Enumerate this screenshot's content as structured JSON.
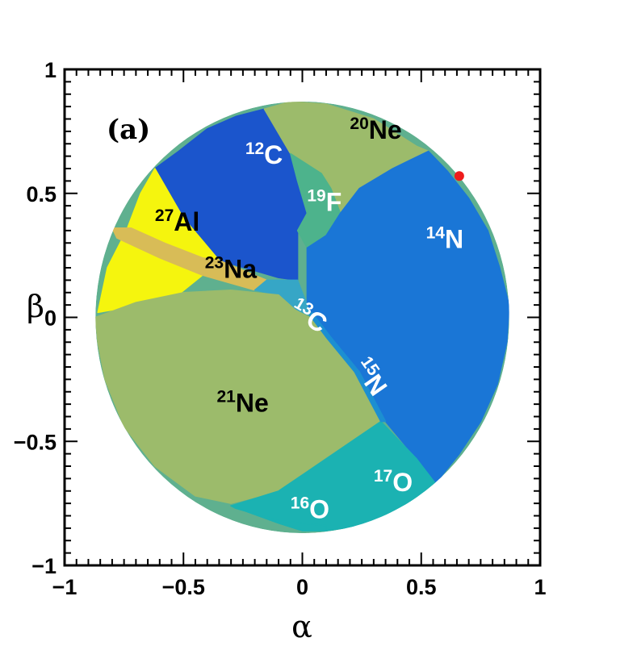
{
  "chart_data": {
    "type": "region-map",
    "panel_label": "(a)",
    "xlabel": "α",
    "ylabel": "β",
    "xlim": [
      -1,
      1
    ],
    "ylim": [
      -1,
      1
    ],
    "xticks": [
      {
        "value": -1,
        "label": "−1"
      },
      {
        "value": -0.5,
        "label": "−0.5"
      },
      {
        "value": 0,
        "label": "0"
      },
      {
        "value": 0.5,
        "label": "0.5"
      },
      {
        "value": 1,
        "label": "1"
      }
    ],
    "yticks": [
      {
        "value": -1,
        "label": "−1"
      },
      {
        "value": -0.5,
        "label": "−0.5"
      },
      {
        "value": 0,
        "label": "0"
      },
      {
        "value": 0.5,
        "label": "0.5"
      },
      {
        "value": 1,
        "label": "1"
      }
    ],
    "circle_radius": 0.87,
    "regions": [
      {
        "mass": "12",
        "element": "C",
        "color": "#1b55cc",
        "label_at": [
          -0.24,
          0.62
        ],
        "label_color": "#ffffff",
        "polygon": [
          [
            -0.62,
            0.6
          ],
          [
            -0.52,
            0.67
          ],
          [
            -0.4,
            0.76
          ],
          [
            -0.28,
            0.81
          ],
          [
            -0.16,
            0.84
          ],
          [
            -0.05,
            0.66
          ],
          [
            -0.02,
            0.55
          ],
          [
            0.02,
            0.42
          ],
          [
            -0.02,
            0.35
          ],
          [
            -0.02,
            0.15
          ],
          [
            -0.1,
            0.16
          ],
          [
            -0.35,
            0.23
          ],
          [
            -0.5,
            0.4
          ]
        ]
      },
      {
        "mass": "20",
        "element": "Ne",
        "color": "#9cbb6b",
        "label_at": [
          0.2,
          0.72
        ],
        "label_color": "#000000",
        "polygon": [
          [
            -0.16,
            0.84
          ],
          [
            -0.05,
            0.87
          ],
          [
            0.1,
            0.86
          ],
          [
            0.3,
            0.8
          ],
          [
            0.48,
            0.69
          ],
          [
            0.53,
            0.67
          ],
          [
            0.38,
            0.6
          ],
          [
            0.24,
            0.52
          ],
          [
            0.16,
            0.42
          ],
          [
            0.12,
            0.52
          ],
          [
            0.08,
            0.58
          ],
          [
            -0.05,
            0.66
          ]
        ]
      },
      {
        "mass": "19",
        "element": "F",
        "color": "#4db38c",
        "label_at": [
          0.02,
          0.43
        ],
        "label_color": "#ffffff",
        "polygon": [
          [
            -0.05,
            0.66
          ],
          [
            0.08,
            0.58
          ],
          [
            0.12,
            0.52
          ],
          [
            0.16,
            0.42
          ],
          [
            0.1,
            0.33
          ],
          [
            0.02,
            0.28
          ],
          [
            -0.02,
            0.35
          ],
          [
            0.02,
            0.42
          ],
          [
            -0.02,
            0.55
          ]
        ]
      },
      {
        "mass": "14",
        "element": "N",
        "color": "#1a76d6",
        "label_at": [
          0.52,
          0.28
        ],
        "label_color": "#ffffff",
        "polygon": [
          [
            0.53,
            0.67
          ],
          [
            0.61,
            0.59
          ],
          [
            0.7,
            0.48
          ],
          [
            0.78,
            0.35
          ],
          [
            0.83,
            0.2
          ],
          [
            0.87,
            0.05
          ],
          [
            0.86,
            -0.1
          ],
          [
            0.82,
            -0.27
          ],
          [
            0.75,
            -0.42
          ],
          [
            0.66,
            -0.55
          ],
          [
            0.56,
            -0.67
          ],
          [
            0.48,
            -0.57
          ],
          [
            0.35,
            -0.42
          ],
          [
            0.22,
            -0.22
          ],
          [
            0.1,
            -0.08
          ],
          [
            0.02,
            0.05
          ],
          [
            0.02,
            0.28
          ],
          [
            0.1,
            0.33
          ],
          [
            0.16,
            0.42
          ],
          [
            0.24,
            0.52
          ],
          [
            0.38,
            0.6
          ]
        ]
      },
      {
        "mass": "27",
        "element": "Al",
        "color": "#f5f50e",
        "label_at": [
          -0.62,
          0.35
        ],
        "label_color": "#000000",
        "polygon": [
          [
            -0.62,
            0.6
          ],
          [
            -0.5,
            0.4
          ],
          [
            -0.35,
            0.23
          ],
          [
            -0.42,
            0.17
          ],
          [
            -0.55,
            0.07
          ],
          [
            -0.86,
            0.02
          ],
          [
            -0.82,
            0.2
          ],
          [
            -0.74,
            0.35
          ],
          [
            -0.68,
            0.5
          ]
        ]
      },
      {
        "mass": "23",
        "element": "Na",
        "color": "#d8bc57",
        "label_at": [
          -0.41,
          0.16
        ],
        "label_color": "#000000",
        "polygon": [
          [
            -0.8,
            0.36
          ],
          [
            -0.72,
            0.36
          ],
          [
            -0.58,
            0.3
          ],
          [
            -0.42,
            0.24
          ],
          [
            -0.35,
            0.23
          ],
          [
            -0.25,
            0.19
          ],
          [
            -0.15,
            0.15
          ],
          [
            -0.2,
            0.11
          ],
          [
            -0.42,
            0.17
          ],
          [
            -0.6,
            0.24
          ],
          [
            -0.78,
            0.32
          ]
        ]
      },
      {
        "mass": "13",
        "element": "C",
        "color": "#36a6c6",
        "label_at": [
          -0.06,
          0.01
        ],
        "label_color": "#ffffff",
        "polygon": [
          [
            -0.15,
            0.15
          ],
          [
            -0.02,
            0.15
          ],
          [
            0.02,
            0.05
          ],
          [
            0.03,
            0.01
          ],
          [
            -0.03,
            0.03
          ],
          [
            -0.1,
            0.09
          ],
          [
            -0.2,
            0.11
          ]
        ]
      },
      {
        "mass": "21",
        "element": "Ne",
        "color": "#9cbb6b",
        "label_at": [
          -0.36,
          -0.38
        ],
        "label_color": "#000000",
        "polygon": [
          [
            -0.87,
            0.0
          ],
          [
            -0.7,
            0.06
          ],
          [
            -0.5,
            0.1
          ],
          [
            -0.3,
            0.11
          ],
          [
            -0.1,
            0.09
          ],
          [
            -0.03,
            0.03
          ],
          [
            0.03,
            0.0
          ],
          [
            0.1,
            -0.08
          ],
          [
            0.22,
            -0.22
          ],
          [
            0.33,
            -0.42
          ],
          [
            0.1,
            -0.57
          ],
          [
            -0.1,
            -0.7
          ],
          [
            -0.3,
            -0.75
          ],
          [
            -0.45,
            -0.72
          ],
          [
            -0.62,
            -0.6
          ],
          [
            -0.75,
            -0.44
          ],
          [
            -0.83,
            -0.25
          ],
          [
            -0.86,
            -0.1
          ]
        ]
      },
      {
        "mass": "17",
        "element": "O",
        "color": "#1bb2b2",
        "label_at": [
          0.3,
          -0.7
        ],
        "label_color": "#ffffff",
        "polygon": [
          [
            0.33,
            -0.42
          ],
          [
            0.48,
            -0.57
          ],
          [
            0.56,
            -0.67
          ],
          [
            0.4,
            -0.78
          ],
          [
            0.25,
            -0.84
          ],
          [
            0.1,
            -0.86
          ],
          [
            0.0,
            -0.86
          ],
          [
            -0.1,
            -0.83
          ],
          [
            -0.3,
            -0.76
          ],
          [
            -0.1,
            -0.7
          ],
          [
            0.1,
            -0.57
          ]
        ]
      },
      {
        "mass": "16",
        "element": "O",
        "color": "#1bb2b2",
        "label_at": [
          -0.05,
          -0.81
        ],
        "label_color": "#ffffff",
        "polygon": [
          [
            -0.3,
            -0.76
          ],
          [
            -0.1,
            -0.83
          ],
          [
            0.0,
            -0.86
          ],
          [
            0.1,
            -0.86
          ],
          [
            0.1,
            -0.84
          ],
          [
            -0.1,
            -0.82
          ],
          [
            -0.28,
            -0.77
          ]
        ]
      },
      {
        "mass": "15",
        "element": "N",
        "color": "#1c8fd1",
        "label_at": [
          0.21,
          -0.2
        ],
        "label_color": "#ffffff",
        "polygon": [
          [
            0.03,
            0.01
          ],
          [
            0.1,
            -0.08
          ],
          [
            0.22,
            -0.22
          ],
          [
            0.33,
            -0.42
          ],
          [
            0.35,
            -0.42
          ],
          [
            0.24,
            -0.22
          ],
          [
            0.12,
            -0.08
          ],
          [
            0.04,
            0.02
          ]
        ]
      }
    ],
    "marker": {
      "x": 0.66,
      "y": 0.57,
      "color": "#ee1c1c"
    }
  }
}
